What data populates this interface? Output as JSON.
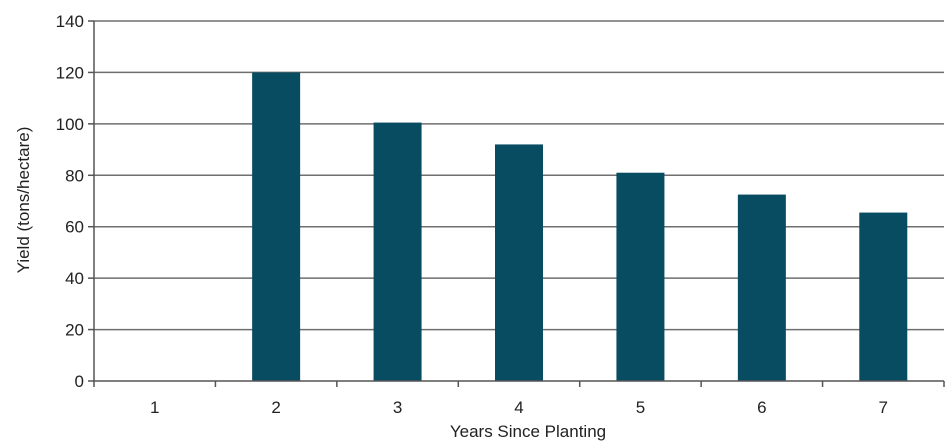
{
  "chart_data": {
    "type": "bar",
    "title": "",
    "xlabel": "Years Since Planting",
    "ylabel": "Yield (tons/hectare)",
    "categories": [
      "1",
      "2",
      "3",
      "4",
      "5",
      "6",
      "7"
    ],
    "values": [
      0,
      120,
      100.5,
      92,
      81,
      72.5,
      65.5
    ],
    "ylim": [
      0,
      140
    ],
    "yticks": [
      "0",
      "20",
      "40",
      "60",
      "80",
      "100",
      "120",
      "140"
    ],
    "grid": true,
    "legend": "none",
    "colors": {
      "bar": "#084c61",
      "grid": "#6f6f6f",
      "axis": "#555555",
      "text": "#222222"
    }
  }
}
